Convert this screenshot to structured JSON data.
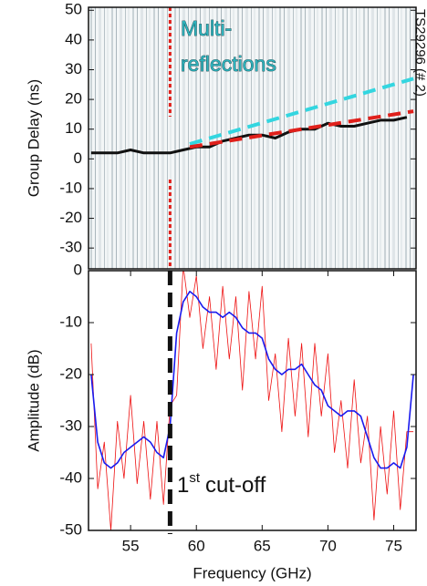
{
  "chart_data": [
    {
      "type": "line",
      "ylabel": "Group Delay (ns)",
      "ylim": [
        -37,
        51
      ],
      "yticks": [
        50,
        40,
        30,
        20,
        10,
        0,
        -10,
        -20,
        -30
      ],
      "xlim": [
        51.8,
        76.7
      ],
      "cutoff_x": 58,
      "cutoff_color": "#e0201b",
      "annotation": [
        "Multi-",
        "reflections"
      ],
      "side_label": "TS29296 (# 2)",
      "series": [
        {
          "color": "#111111",
          "dash": false,
          "x": [
            52,
            53,
            54,
            55,
            56,
            57,
            58,
            59,
            60,
            61,
            62,
            63,
            64,
            65,
            66,
            67,
            68,
            69,
            70,
            71,
            72,
            73,
            74,
            75,
            76
          ],
          "values": [
            2,
            2,
            2,
            3,
            2,
            2,
            2,
            3,
            4,
            4,
            6,
            7,
            8,
            8,
            7,
            9,
            10,
            10,
            12,
            11,
            11,
            12,
            13,
            13,
            14
          ]
        },
        {
          "color": "#33d6e0",
          "dash": true,
          "x": [
            59.5,
            76.5
          ],
          "values": [
            5,
            27
          ]
        },
        {
          "color": "#e0201b",
          "dash": true,
          "x": [
            59.5,
            76.5
          ],
          "values": [
            4,
            16
          ]
        }
      ]
    },
    {
      "type": "line",
      "xlabel": "Frequency (GHz)",
      "ylabel": "Amplitude (dB)",
      "ylim": [
        -50,
        0
      ],
      "yticks": [
        0,
        -10,
        -20,
        -30,
        -40,
        -50
      ],
      "xlim": [
        51.8,
        76.7
      ],
      "xticks": [
        55,
        60,
        65,
        70,
        75
      ],
      "cutoff_x": 58,
      "cutoff_color": "#111111",
      "annotation": [
        "1",
        "st",
        "cut-off"
      ],
      "x": [
        52,
        52.5,
        53,
        53.5,
        54,
        54.5,
        55,
        55.5,
        56,
        56.5,
        57,
        57.5,
        58,
        58.5,
        59,
        59.5,
        60,
        60.5,
        61,
        61.5,
        62,
        62.5,
        63,
        63.5,
        64,
        64.5,
        65,
        65.5,
        66,
        66.5,
        67,
        67.5,
        68,
        68.5,
        69,
        69.5,
        70,
        70.5,
        71,
        71.5,
        72,
        72.5,
        73,
        73.5,
        74,
        74.5,
        75,
        75.5,
        76,
        76.5
      ],
      "series": [
        {
          "color": "#ee1111",
          "width": 0.8,
          "values": [
            -14,
            -42,
            -33,
            -50,
            -29,
            -40,
            -24,
            -41,
            -29,
            -44,
            -29,
            -45,
            -26,
            -24,
            1,
            -9,
            -1,
            -15,
            -5,
            -19,
            -3,
            -17,
            -5,
            -23,
            -4,
            -17,
            -3,
            -25,
            -16,
            -31,
            -13,
            -28,
            -14,
            -32,
            -14,
            -28,
            -16,
            -35,
            -25,
            -38,
            -21,
            -37,
            -28,
            -48,
            -30,
            -43,
            -27,
            -46,
            -31,
            -31
          ]
        },
        {
          "color": "#1a1aee",
          "width": 1.6,
          "values": [
            -20,
            -33,
            -37,
            -38,
            -37,
            -35,
            -34,
            -33,
            -32,
            -33,
            -35,
            -36,
            -30,
            -12,
            -6,
            -4,
            -5,
            -7,
            -8,
            -8,
            -9,
            -8,
            -9,
            -11,
            -12,
            -12,
            -13,
            -17,
            -19,
            -20,
            -19,
            -19,
            -18,
            -20,
            -22,
            -23,
            -26,
            -27,
            -28,
            -27,
            -27,
            -28,
            -32,
            -36,
            -38,
            -38,
            -37,
            -38,
            -34,
            -20
          ]
        }
      ]
    }
  ]
}
